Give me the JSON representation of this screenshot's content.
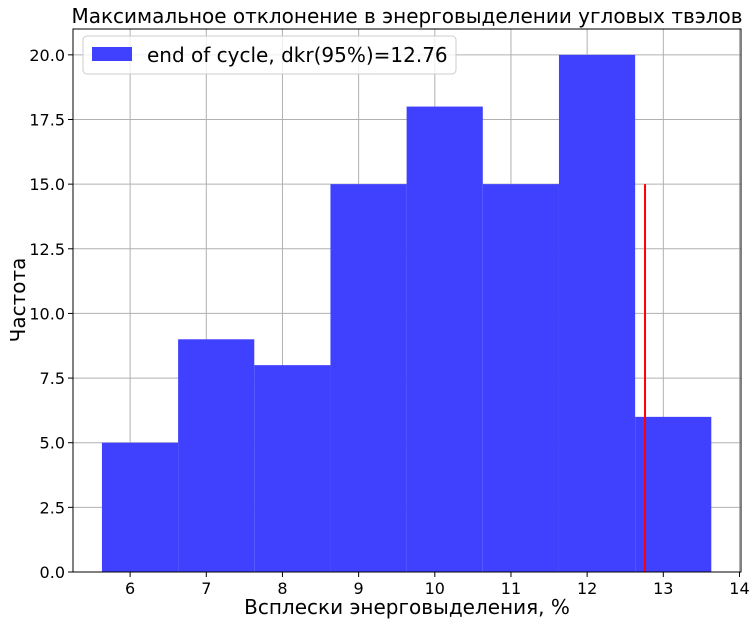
{
  "chart_data": {
    "type": "bar",
    "title": "Максимальное отклонение в энерговыделении угловых твэлов",
    "xlabel": "Всплески энерговыделения, %",
    "ylabel": "Частота",
    "xlim": [
      5.25,
      14.02
    ],
    "ylim": [
      0,
      21
    ],
    "xticks": [
      6,
      7,
      8,
      9,
      10,
      11,
      12,
      13,
      14
    ],
    "yticks": [
      0.0,
      2.5,
      5.0,
      7.5,
      10.0,
      12.5,
      15.0,
      17.5,
      20.0
    ],
    "xtick_labels": [
      "6",
      "7",
      "8",
      "9",
      "10",
      "11",
      "12",
      "13",
      "14"
    ],
    "ytick_labels": [
      "0.0",
      "2.5",
      "5.0",
      "7.5",
      "10.0",
      "12.5",
      "15.0",
      "17.5",
      "20.0"
    ],
    "grid": true,
    "legend_position": "top-left",
    "bar_color": "#4040ff",
    "series": [
      {
        "name": "end of cycle, dkr(95%)=12.76",
        "bins": [
          {
            "start": 5.63,
            "end": 6.63,
            "count": 5
          },
          {
            "start": 6.63,
            "end": 7.63,
            "count": 9
          },
          {
            "start": 7.63,
            "end": 8.63,
            "count": 8
          },
          {
            "start": 8.63,
            "end": 9.63,
            "count": 15
          },
          {
            "start": 9.63,
            "end": 10.63,
            "count": 18
          },
          {
            "start": 10.63,
            "end": 11.63,
            "count": 15
          },
          {
            "start": 11.63,
            "end": 12.63,
            "count": 20
          },
          {
            "start": 12.63,
            "end": 13.63,
            "count": 6
          }
        ]
      }
    ],
    "vline": {
      "x": 12.76,
      "y_from": 0,
      "y_to": 15,
      "color": "#ff0000"
    }
  }
}
